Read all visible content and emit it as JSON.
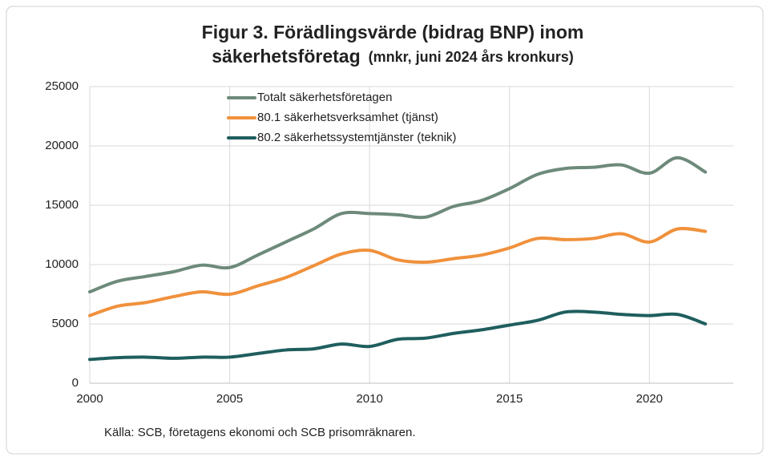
{
  "chart_data": {
    "type": "line",
    "title": [
      "Figur 3. Förädlingsvärde (bidrag BNP) inom",
      "säkerhetsföretag"
    ],
    "subtitle": "(mnkr, juni 2024 års kronkurs)",
    "x": [
      2000,
      2001,
      2002,
      2003,
      2004,
      2005,
      2006,
      2007,
      2008,
      2009,
      2010,
      2011,
      2012,
      2013,
      2014,
      2015,
      2016,
      2017,
      2018,
      2019,
      2020,
      2021,
      2022
    ],
    "series": [
      {
        "name": "Totalt säkerhetsföretagen",
        "color": "#6d8a7a",
        "values": [
          7700,
          8600,
          9000,
          9400,
          9950,
          9750,
          10800,
          11900,
          13000,
          14300,
          14300,
          14200,
          14000,
          14900,
          15400,
          16400,
          17600,
          18100,
          18200,
          18400,
          17700,
          19000,
          17800
        ]
      },
      {
        "name": "80.1 säkerhetsverksamhet (tjänst)",
        "color": "#f0913c",
        "values": [
          5700,
          6500,
          6800,
          7300,
          7700,
          7500,
          8200,
          8900,
          9900,
          10900,
          11200,
          10400,
          10200,
          10500,
          10800,
          11400,
          12200,
          12100,
          12200,
          12600,
          11900,
          13000,
          12800
        ]
      },
      {
        "name": "80.2 säkerhetssystemtjänster (teknik)",
        "color": "#1f5e5e",
        "values": [
          2000,
          2150,
          2200,
          2100,
          2200,
          2200,
          2500,
          2800,
          2900,
          3300,
          3100,
          3700,
          3800,
          4200,
          4500,
          4900,
          5300,
          6000,
          6000,
          5800,
          5700,
          5800,
          5000
        ]
      }
    ],
    "xlim": [
      2000,
      2023
    ],
    "xticks": [
      2000,
      2005,
      2010,
      2015,
      2020
    ],
    "ylim": [
      0,
      25000
    ],
    "yticks": [
      0,
      5000,
      10000,
      15000,
      20000,
      25000
    ],
    "grid": true,
    "legend": "top-left",
    "source": "Källa:  SCB, företagens ekonomi och SCB prisomräknaren."
  }
}
